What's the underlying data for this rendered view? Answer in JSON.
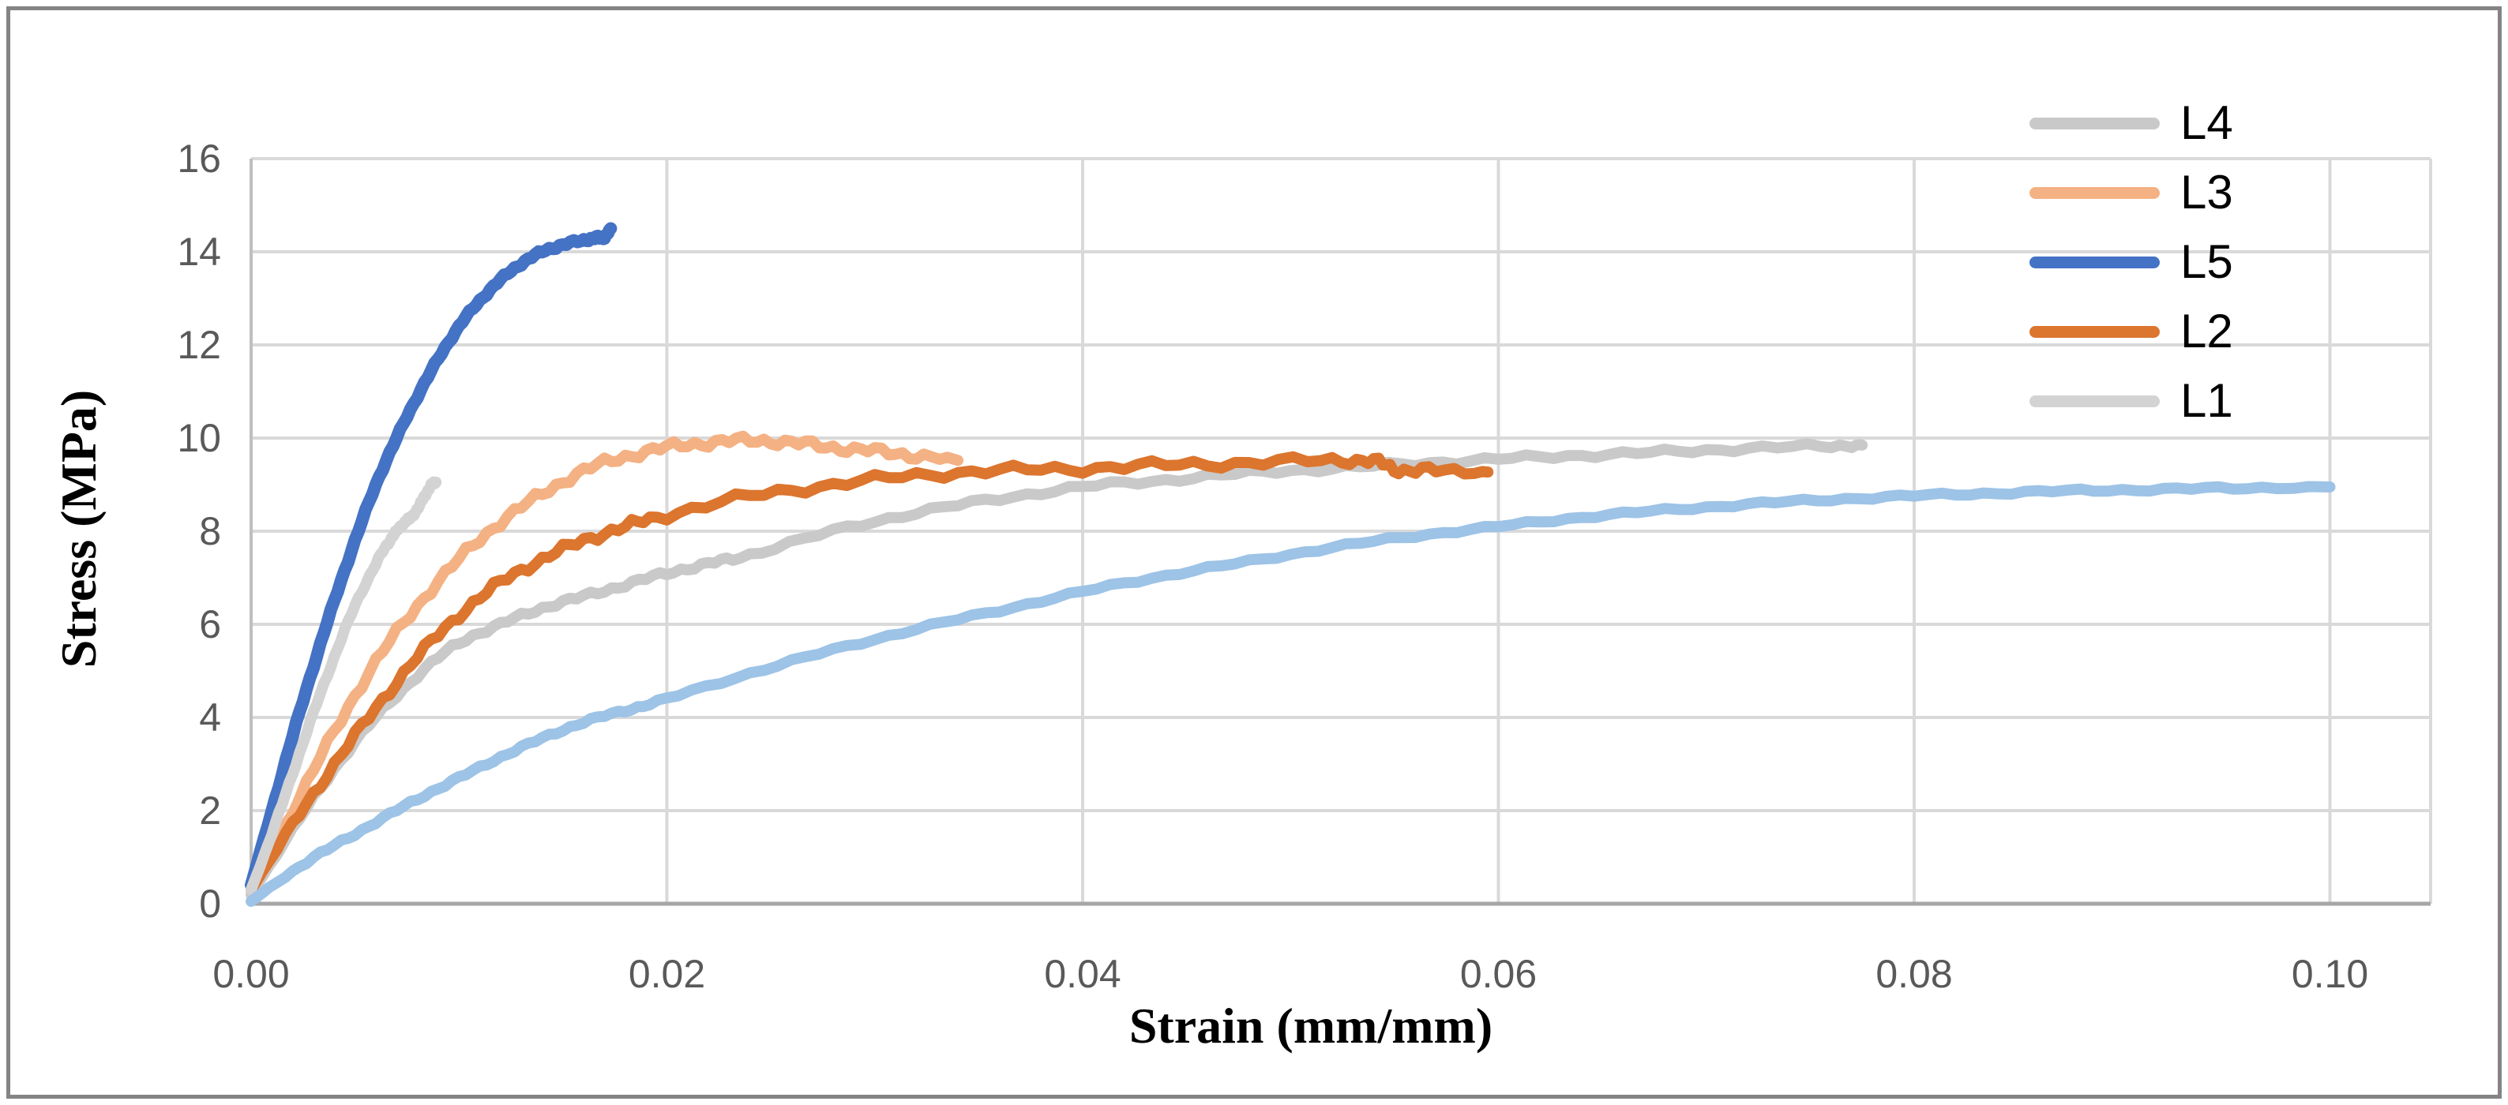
{
  "figure": {
    "frame_color": "#848484",
    "background": "#FFFFFF"
  },
  "styles": {
    "gridline_color": "#D9D9D9",
    "x_axis_line_color": "#A6A6A6",
    "y_axis_line_color": "#BFBFBF",
    "tick_label_color": "#595959",
    "title_color": "#000000"
  },
  "chart_data": {
    "type": "line",
    "title": "",
    "xlabel": "Strain (mm/mm)",
    "ylabel": "Stress (MPa)",
    "xlim": [
      0,
      0.105
    ],
    "ylim": [
      0,
      16
    ],
    "grid": true,
    "legend_position": "top-right-inside",
    "legend_order": [
      "L4",
      "L3",
      "L5",
      "L2",
      "L1"
    ],
    "x_tick_labels": [
      "0.00",
      "0.02",
      "0.04",
      "0.06",
      "0.08",
      "0.10"
    ],
    "x_tick_values": [
      0,
      0.02,
      0.04,
      0.06,
      0.08,
      0.1
    ],
    "y_tick_labels": [
      "0",
      "2",
      "4",
      "6",
      "8",
      "10",
      "12",
      "14",
      "16"
    ],
    "y_tick_values": [
      0,
      2,
      4,
      6,
      8,
      10,
      12,
      14,
      16
    ],
    "series": [
      {
        "name": "L4",
        "color": "#C9C9C9",
        "in_legend": true,
        "stroke_width": 14,
        "jitter": 3,
        "points": [
          [
            0,
            0.2
          ],
          [
            0.002,
            1.6
          ],
          [
            0.004,
            2.9
          ],
          [
            0.006,
            4.0
          ],
          [
            0.008,
            4.9
          ],
          [
            0.01,
            5.6
          ],
          [
            0.012,
            6.0
          ],
          [
            0.014,
            6.35
          ],
          [
            0.016,
            6.6
          ],
          [
            0.018,
            6.85
          ],
          [
            0.02,
            7.1
          ],
          [
            0.022,
            7.3
          ],
          [
            0.024,
            7.5
          ],
          [
            0.028,
            8.0
          ],
          [
            0.032,
            8.4
          ],
          [
            0.036,
            8.7
          ],
          [
            0.04,
            8.95
          ],
          [
            0.044,
            9.1
          ],
          [
            0.048,
            9.25
          ],
          [
            0.052,
            9.35
          ],
          [
            0.056,
            9.45
          ],
          [
            0.06,
            9.55
          ],
          [
            0.064,
            9.63
          ],
          [
            0.068,
            9.7
          ],
          [
            0.072,
            9.78
          ],
          [
            0.076,
            9.83
          ],
          [
            0.0775,
            9.85
          ]
        ]
      },
      {
        "name": "L3",
        "color": "#F4B183",
        "in_legend": true,
        "stroke_width": 14,
        "jitter": 5,
        "points": [
          [
            0,
            0.3
          ],
          [
            0.002,
            2.0
          ],
          [
            0.004,
            3.7
          ],
          [
            0.006,
            5.2
          ],
          [
            0.008,
            6.4
          ],
          [
            0.01,
            7.4
          ],
          [
            0.012,
            8.2
          ],
          [
            0.014,
            8.8
          ],
          [
            0.016,
            9.3
          ],
          [
            0.018,
            9.6
          ],
          [
            0.02,
            9.8
          ],
          [
            0.022,
            9.9
          ],
          [
            0.024,
            9.95
          ],
          [
            0.026,
            9.9
          ],
          [
            0.028,
            9.8
          ],
          [
            0.03,
            9.72
          ],
          [
            0.032,
            9.62
          ],
          [
            0.034,
            9.52
          ]
        ]
      },
      {
        "name": "L5",
        "color": "#4472C4",
        "in_legend": true,
        "stroke_width": 16,
        "jitter": 2,
        "points": [
          [
            0,
            0.4
          ],
          [
            0.001,
            2.0
          ],
          [
            0.002,
            3.6
          ],
          [
            0.003,
            5.1
          ],
          [
            0.004,
            6.5
          ],
          [
            0.005,
            7.8
          ],
          [
            0.006,
            9.0
          ],
          [
            0.007,
            10.0
          ],
          [
            0.008,
            10.9
          ],
          [
            0.009,
            11.7
          ],
          [
            0.01,
            12.4
          ],
          [
            0.011,
            12.95
          ],
          [
            0.012,
            13.4
          ],
          [
            0.013,
            13.75
          ],
          [
            0.014,
            14.0
          ],
          [
            0.015,
            14.15
          ],
          [
            0.016,
            14.25
          ],
          [
            0.0166,
            14.3
          ],
          [
            0.017,
            14.32
          ],
          [
            0.0173,
            14.5
          ]
        ]
      },
      {
        "name": "L2",
        "color": "#DC752E",
        "in_legend": true,
        "stroke_width": 14,
        "jitter": 5,
        "points": [
          [
            0,
            0.3
          ],
          [
            0.002,
            1.7
          ],
          [
            0.004,
            3.0
          ],
          [
            0.006,
            4.2
          ],
          [
            0.008,
            5.3
          ],
          [
            0.01,
            6.2
          ],
          [
            0.012,
            6.9
          ],
          [
            0.014,
            7.4
          ],
          [
            0.016,
            7.8
          ],
          [
            0.018,
            8.1
          ],
          [
            0.02,
            8.35
          ],
          [
            0.024,
            8.75
          ],
          [
            0.028,
            9.0
          ],
          [
            0.032,
            9.2
          ],
          [
            0.036,
            9.3
          ],
          [
            0.04,
            9.35
          ],
          [
            0.044,
            9.42
          ],
          [
            0.048,
            9.47
          ],
          [
            0.052,
            9.52
          ],
          [
            0.054,
            9.5
          ],
          [
            0.0552,
            9.32
          ],
          [
            0.057,
            9.3
          ],
          [
            0.0595,
            9.27
          ]
        ]
      },
      {
        "name": "L1",
        "color": "#D3D3D3",
        "in_legend": true,
        "stroke_width": 14,
        "jitter": 2,
        "points": [
          [
            0,
            0.3
          ],
          [
            0.001,
            1.5
          ],
          [
            0.002,
            2.8
          ],
          [
            0.003,
            4.1
          ],
          [
            0.004,
            5.3
          ],
          [
            0.005,
            6.4
          ],
          [
            0.006,
            7.3
          ],
          [
            0.0066,
            7.75
          ],
          [
            0.007,
            8.0
          ],
          [
            0.0074,
            8.2
          ],
          [
            0.0077,
            8.3
          ],
          [
            0.0081,
            8.55
          ],
          [
            0.0084,
            8.8
          ],
          [
            0.0087,
            9.0
          ],
          [
            0.0089,
            9.05
          ]
        ]
      },
      {
        "name": "unlabeled-light-blue",
        "color": "#9DC3E6",
        "in_legend": false,
        "stroke_width": 14,
        "jitter": 2,
        "points": [
          [
            0,
            0.05
          ],
          [
            0.002,
            0.7
          ],
          [
            0.004,
            1.25
          ],
          [
            0.006,
            1.75
          ],
          [
            0.008,
            2.25
          ],
          [
            0.01,
            2.7
          ],
          [
            0.012,
            3.15
          ],
          [
            0.014,
            3.55
          ],
          [
            0.016,
            3.9
          ],
          [
            0.018,
            4.15
          ],
          [
            0.02,
            4.4
          ],
          [
            0.024,
            4.95
          ],
          [
            0.028,
            5.45
          ],
          [
            0.032,
            5.9
          ],
          [
            0.036,
            6.3
          ],
          [
            0.04,
            6.7
          ],
          [
            0.044,
            7.05
          ],
          [
            0.048,
            7.35
          ],
          [
            0.052,
            7.65
          ],
          [
            0.056,
            7.9
          ],
          [
            0.06,
            8.1
          ],
          [
            0.064,
            8.3
          ],
          [
            0.068,
            8.45
          ],
          [
            0.072,
            8.58
          ],
          [
            0.076,
            8.68
          ],
          [
            0.08,
            8.76
          ],
          [
            0.084,
            8.82
          ],
          [
            0.088,
            8.87
          ],
          [
            0.092,
            8.9
          ],
          [
            0.096,
            8.93
          ],
          [
            0.1,
            8.95
          ]
        ]
      }
    ]
  }
}
